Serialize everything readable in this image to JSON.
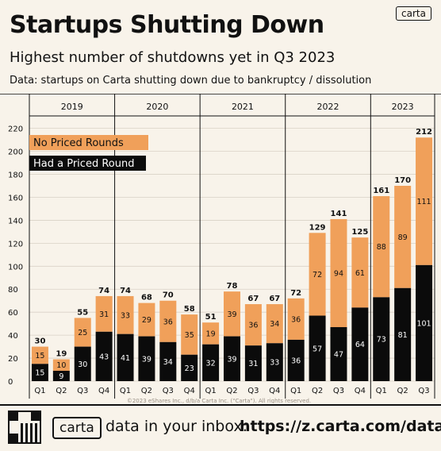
{
  "logo": "carta",
  "header": {
    "title": "Startups Shutting Down",
    "subtitle": "Highest number of shutdowns yet in Q3 2023",
    "note": "Data: startups on Carta shutting down due to bankruptcy / dissolution"
  },
  "colors": {
    "no_priced": "#f0a05a",
    "priced": "#0b0b0b",
    "background": "#f8f3ea"
  },
  "chart_data": {
    "type": "bar",
    "stacked": true,
    "years": [
      "2019",
      "2020",
      "2021",
      "2022",
      "2023"
    ],
    "categories": [
      "Q1",
      "Q2",
      "Q3",
      "Q4",
      "Q1",
      "Q2",
      "Q3",
      "Q4",
      "Q1",
      "Q2",
      "Q3",
      "Q4",
      "Q1",
      "Q2",
      "Q3",
      "Q4",
      "Q1",
      "Q2",
      "Q3"
    ],
    "series": [
      {
        "name": "Had a Priced Round",
        "values": [
          15,
          9,
          30,
          43,
          41,
          39,
          34,
          23,
          32,
          39,
          31,
          33,
          36,
          57,
          47,
          64,
          73,
          81,
          101
        ]
      },
      {
        "name": "No Priced Rounds",
        "values": [
          15,
          10,
          25,
          31,
          33,
          29,
          36,
          35,
          19,
          39,
          36,
          34,
          36,
          72,
          94,
          61,
          88,
          89,
          111
        ]
      }
    ],
    "totals": [
      30,
      19,
      55,
      74,
      74,
      68,
      70,
      58,
      51,
      78,
      67,
      67,
      72,
      129,
      141,
      125,
      161,
      170,
      212
    ],
    "yticks": [
      "0",
      "20",
      "40",
      "60",
      "80",
      "100",
      "120",
      "140",
      "160",
      "180",
      "200",
      "220"
    ],
    "ylim": [
      0,
      220
    ],
    "legend": [
      "No Priced Rounds",
      "Had a Priced Round"
    ],
    "legend_position": "top-left",
    "copyright": "©2023 eShares Inc., d/b/a Carta Inc. (\"Carta\"). All rights reserved."
  },
  "footer": {
    "logo": "carta",
    "text": "data in your inbox:",
    "url": "https://z.carta.com/data"
  }
}
